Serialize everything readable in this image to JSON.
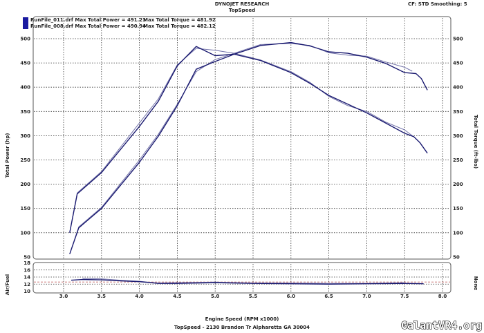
{
  "header": {
    "title": "DYNOJET RESEARCH",
    "subtitle": "TopSpeed",
    "settings": "CF: STD  Smoothing: 5"
  },
  "legend": [
    {
      "text": "RunFile_011.drf Max Total Power = 491.21",
      "torque": "Max Total Torque = 481.92",
      "color": "#1a1a70"
    },
    {
      "text": "RunFile_008.drf Max Total Power = 490.94",
      "torque": "Max Total Torque = 482.12",
      "color": "#7070a8"
    }
  ],
  "footer": {
    "address": "TopSpeed - 2130 Brandon Tr Alpharetta GA 30004",
    "watermark": "GalantVR4.org"
  },
  "chart_data": [
    {
      "type": "line",
      "title": "DYNOJET RESEARCH",
      "xlabel": "Engine Speed (RPM x1000)",
      "ylabel": "Total Power (hp)",
      "y2label": "Total Torque (ft-lbs)",
      "xlim": [
        2.6,
        8.1
      ],
      "ylim": [
        50,
        500
      ],
      "grid": true,
      "xticks": [
        "3.0",
        "3.5",
        "4.0",
        "4.5",
        "5.0",
        "5.5",
        "6.0",
        "6.5",
        "7.0",
        "7.5",
        "8.0"
      ],
      "yticks": [
        "500",
        "450",
        "400",
        "350",
        "300",
        "250",
        "200",
        "150",
        "100",
        "50"
      ],
      "series": [
        {
          "name": "RunFile_011 Power",
          "run": 0,
          "x": [
            3.08,
            3.2,
            3.5,
            4.0,
            4.25,
            4.5,
            4.75,
            5.0,
            5.25,
            5.6,
            6.0,
            6.25,
            6.5,
            6.75,
            7.0,
            7.25,
            7.5,
            7.65,
            7.72,
            7.8
          ],
          "y": [
            56,
            110,
            150,
            245,
            299,
            362,
            437,
            453,
            468,
            486,
            492,
            485,
            473,
            470,
            462,
            449,
            430,
            428,
            418,
            394
          ]
        },
        {
          "name": "RunFile_011 Torque",
          "run": 0,
          "x": [
            3.08,
            3.18,
            3.5,
            4.0,
            4.25,
            4.5,
            4.75,
            5.0,
            5.25,
            5.6,
            6.0,
            6.25,
            6.5,
            6.75,
            7.0,
            7.25,
            7.5,
            7.62,
            7.7,
            7.8
          ],
          "y": [
            100,
            180,
            224,
            319,
            371,
            444,
            484,
            465,
            468,
            455,
            430,
            408,
            383,
            365,
            347,
            326,
            305,
            298,
            286,
            264
          ]
        },
        {
          "name": "RunFile_008 Power",
          "run": 1,
          "x": [
            3.08,
            3.2,
            3.5,
            4.0,
            4.25,
            4.5,
            4.75,
            5.0,
            5.25,
            5.6,
            6.0,
            6.25,
            6.5,
            6.75,
            7.0,
            7.25,
            7.5,
            7.6
          ],
          "y": [
            56,
            112,
            152,
            250,
            303,
            365,
            432,
            457,
            470,
            488,
            490,
            486,
            471,
            466,
            464,
            452,
            441,
            433
          ]
        },
        {
          "name": "RunFile_008 Torque",
          "run": 1,
          "x": [
            3.08,
            3.18,
            3.5,
            4.0,
            4.25,
            4.5,
            4.75,
            5.0,
            5.25,
            5.6,
            6.0,
            6.25,
            6.5,
            6.75,
            7.0,
            7.25,
            7.5,
            7.6
          ],
          "y": [
            100,
            182,
            226,
            326,
            376,
            446,
            480,
            476,
            470,
            456,
            432,
            410,
            381,
            362,
            350,
            328,
            312,
            300
          ]
        }
      ]
    },
    {
      "type": "line",
      "ylabel": "Air/Fuel",
      "y2label": "None",
      "xlim": [
        2.6,
        8.1
      ],
      "ylim": [
        10,
        18
      ],
      "yticks": [
        "18",
        "16",
        "14",
        "12",
        "10"
      ],
      "reference": 12.6,
      "series": [
        {
          "name": "RunFile_011 AFR",
          "run": 0,
          "x": [
            3.1,
            3.25,
            3.5,
            3.75,
            4.0,
            4.25,
            4.5,
            5.0,
            5.5,
            6.0,
            6.5,
            7.0,
            7.5,
            7.75
          ],
          "y": [
            13.1,
            13.3,
            13.2,
            12.9,
            12.7,
            12.2,
            12.2,
            12.4,
            12.2,
            12.1,
            12.0,
            12.1,
            12.2,
            12.1
          ]
        },
        {
          "name": "RunFile_008 AFR",
          "run": 1,
          "x": [
            3.25,
            3.5,
            3.75,
            4.0,
            4.25,
            4.5,
            5.0,
            5.5,
            6.0,
            6.5,
            7.0,
            7.5
          ],
          "y": [
            13.6,
            13.5,
            13.1,
            12.8,
            12.3,
            12.4,
            12.6,
            12.3,
            12.3,
            12.2,
            12.2,
            12.4
          ]
        }
      ]
    }
  ]
}
